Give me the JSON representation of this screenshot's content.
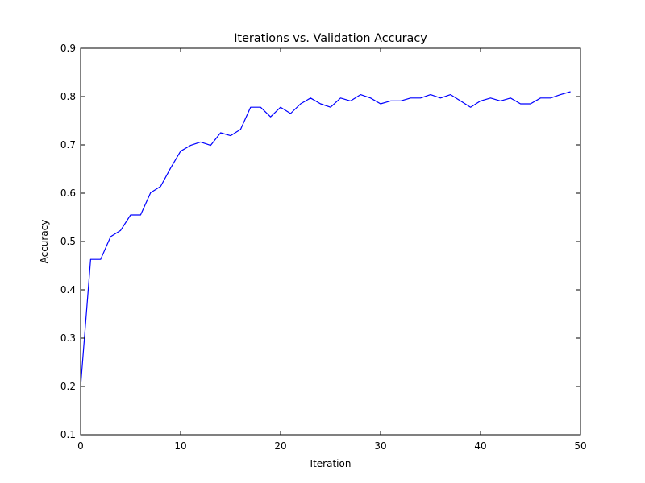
{
  "chart_data": {
    "type": "line",
    "title": "Iterations vs. Validation Accuracy",
    "xlabel": "Iteration",
    "ylabel": "Accuracy",
    "xlim": [
      0,
      50
    ],
    "ylim": [
      0.1,
      0.9
    ],
    "xticks": [
      "0",
      "10",
      "20",
      "30",
      "40",
      "50"
    ],
    "yticks": [
      "0.1",
      "0.2",
      "0.3",
      "0.4",
      "0.5",
      "0.6",
      "0.7",
      "0.8",
      "0.9"
    ],
    "grid": false,
    "series": [
      {
        "color": "#0000ff",
        "x": [
          0,
          1,
          2,
          3,
          4,
          5,
          6,
          7,
          8,
          9,
          10,
          11,
          12,
          13,
          14,
          15,
          16,
          17,
          18,
          19,
          20,
          21,
          22,
          23,
          24,
          25,
          26,
          27,
          28,
          29,
          30,
          31,
          32,
          33,
          34,
          35,
          36,
          37,
          38,
          39,
          40,
          41,
          42,
          43,
          44,
          45,
          46,
          47,
          48,
          49
        ],
        "values": [
          0.2,
          0.463,
          0.463,
          0.51,
          0.523,
          0.555,
          0.555,
          0.601,
          0.614,
          0.652,
          0.687,
          0.699,
          0.706,
          0.699,
          0.725,
          0.719,
          0.732,
          0.778,
          0.778,
          0.758,
          0.778,
          0.765,
          0.785,
          0.797,
          0.785,
          0.778,
          0.797,
          0.791,
          0.804,
          0.797,
          0.785,
          0.791,
          0.791,
          0.797,
          0.797,
          0.804,
          0.797,
          0.804,
          0.791,
          0.778,
          0.791,
          0.797,
          0.791,
          0.797,
          0.785,
          0.785,
          0.797,
          0.797,
          0.804,
          0.81
        ]
      }
    ]
  }
}
